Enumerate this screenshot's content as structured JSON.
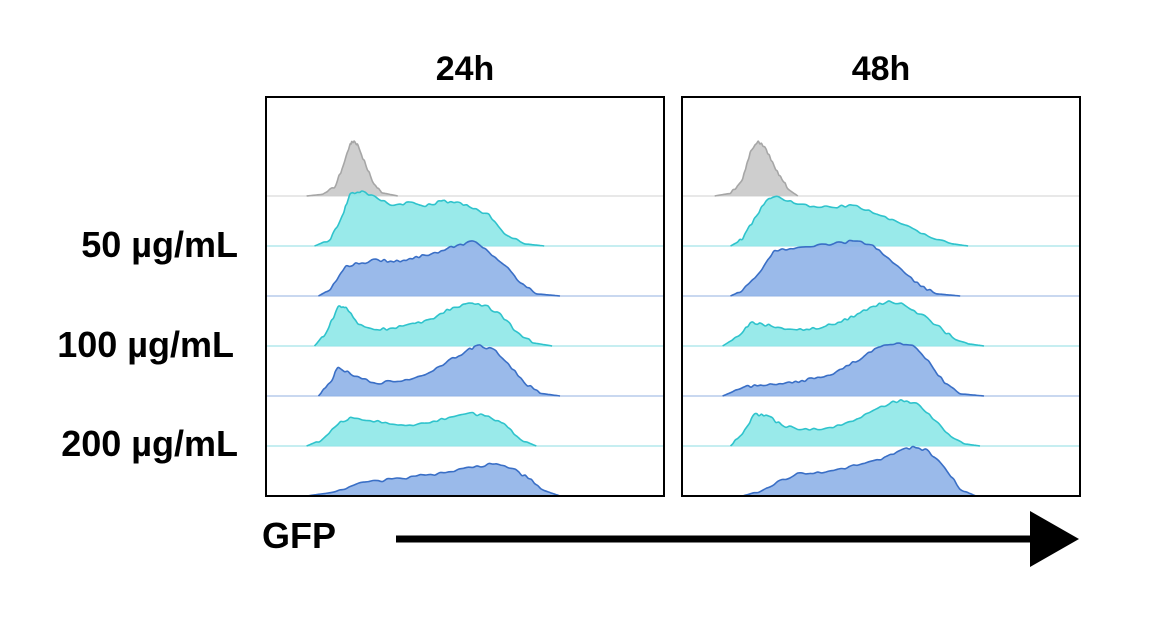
{
  "chart_data": {
    "type": "area",
    "title": "",
    "xlabel": "GFP",
    "ylabel": "",
    "grid": false,
    "panels": [
      {
        "name": "24h"
      },
      {
        "name": "48h"
      }
    ],
    "row_labels": [
      "50 µg/mL",
      "100 µg/mL",
      "200 µg/mL"
    ],
    "colors": {
      "control_fill": "#c9c9c9",
      "control_stroke": "#a6a6a6",
      "cyan_fill": "#8ee8e8",
      "cyan_stroke": "#2fc3cc",
      "blue_fill": "#8fb3e8",
      "blue_stroke": "#3a6fc6"
    },
    "x_domain": [
      0,
      1
    ],
    "histograms": [
      {
        "panel": 0,
        "tracks": [
          {
            "color": "control",
            "points": [
              [
                0.1,
                0
              ],
              [
                0.14,
                0.03
              ],
              [
                0.17,
                0.15
              ],
              [
                0.19,
                0.5
              ],
              [
                0.21,
                0.95
              ],
              [
                0.22,
                1.0
              ],
              [
                0.23,
                0.92
              ],
              [
                0.25,
                0.55
              ],
              [
                0.27,
                0.22
              ],
              [
                0.29,
                0.06
              ],
              [
                0.33,
                0
              ]
            ]
          },
          {
            "color": "cyan",
            "points": [
              [
                0.12,
                0
              ],
              [
                0.16,
                0.12
              ],
              [
                0.19,
                0.55
              ],
              [
                0.21,
                0.95
              ],
              [
                0.24,
                1.0
              ],
              [
                0.28,
                0.86
              ],
              [
                0.32,
                0.74
              ],
              [
                0.36,
                0.8
              ],
              [
                0.4,
                0.72
              ],
              [
                0.44,
                0.82
              ],
              [
                0.48,
                0.8
              ],
              [
                0.52,
                0.68
              ],
              [
                0.56,
                0.58
              ],
              [
                0.6,
                0.22
              ],
              [
                0.65,
                0.04
              ],
              [
                0.7,
                0
              ]
            ]
          },
          {
            "color": "blue",
            "points": [
              [
                0.13,
                0
              ],
              [
                0.16,
                0.12
              ],
              [
                0.2,
                0.55
              ],
              [
                0.24,
                0.6
              ],
              [
                0.28,
                0.66
              ],
              [
                0.32,
                0.62
              ],
              [
                0.36,
                0.68
              ],
              [
                0.4,
                0.74
              ],
              [
                0.44,
                0.82
              ],
              [
                0.48,
                0.92
              ],
              [
                0.52,
                1.0
              ],
              [
                0.56,
                0.8
              ],
              [
                0.6,
                0.56
              ],
              [
                0.64,
                0.24
              ],
              [
                0.68,
                0.04
              ],
              [
                0.74,
                0
              ]
            ]
          },
          {
            "color": "cyan",
            "points": [
              [
                0.12,
                0
              ],
              [
                0.15,
                0.25
              ],
              [
                0.18,
                0.72
              ],
              [
                0.2,
                0.7
              ],
              [
                0.23,
                0.4
              ],
              [
                0.27,
                0.3
              ],
              [
                0.31,
                0.32
              ],
              [
                0.35,
                0.38
              ],
              [
                0.39,
                0.42
              ],
              [
                0.43,
                0.55
              ],
              [
                0.47,
                0.7
              ],
              [
                0.51,
                0.78
              ],
              [
                0.55,
                0.74
              ],
              [
                0.59,
                0.58
              ],
              [
                0.63,
                0.26
              ],
              [
                0.67,
                0.06
              ],
              [
                0.72,
                0
              ]
            ]
          },
          {
            "color": "blue",
            "points": [
              [
                0.13,
                0
              ],
              [
                0.16,
                0.25
              ],
              [
                0.18,
                0.52
              ],
              [
                0.22,
                0.36
              ],
              [
                0.27,
                0.24
              ],
              [
                0.32,
                0.26
              ],
              [
                0.37,
                0.32
              ],
              [
                0.42,
                0.46
              ],
              [
                0.46,
                0.66
              ],
              [
                0.5,
                0.8
              ],
              [
                0.53,
                0.92
              ],
              [
                0.57,
                0.86
              ],
              [
                0.61,
                0.58
              ],
              [
                0.65,
                0.24
              ],
              [
                0.69,
                0.05
              ],
              [
                0.74,
                0
              ]
            ]
          },
          {
            "color": "cyan",
            "points": [
              [
                0.1,
                0
              ],
              [
                0.14,
                0.12
              ],
              [
                0.18,
                0.4
              ],
              [
                0.21,
                0.52
              ],
              [
                0.26,
                0.46
              ],
              [
                0.31,
                0.4
              ],
              [
                0.36,
                0.38
              ],
              [
                0.41,
                0.42
              ],
              [
                0.46,
                0.52
              ],
              [
                0.51,
                0.6
              ],
              [
                0.56,
                0.54
              ],
              [
                0.6,
                0.4
              ],
              [
                0.64,
                0.12
              ],
              [
                0.68,
                0
              ]
            ]
          },
          {
            "color": "blue",
            "points": [
              [
                0.1,
                0
              ],
              [
                0.16,
                0.06
              ],
              [
                0.22,
                0.2
              ],
              [
                0.28,
                0.28
              ],
              [
                0.34,
                0.32
              ],
              [
                0.4,
                0.38
              ],
              [
                0.46,
                0.44
              ],
              [
                0.52,
                0.52
              ],
              [
                0.57,
                0.58
              ],
              [
                0.62,
                0.5
              ],
              [
                0.66,
                0.32
              ],
              [
                0.7,
                0.1
              ],
              [
                0.74,
                0
              ]
            ]
          }
        ]
      },
      {
        "panel": 1,
        "tracks": [
          {
            "color": "control",
            "points": [
              [
                0.08,
                0
              ],
              [
                0.12,
                0.05
              ],
              [
                0.15,
                0.3
              ],
              [
                0.17,
                0.8
              ],
              [
                0.19,
                1.0
              ],
              [
                0.21,
                0.85
              ],
              [
                0.23,
                0.55
              ],
              [
                0.25,
                0.3
              ],
              [
                0.27,
                0.1
              ],
              [
                0.29,
                0
              ]
            ]
          },
          {
            "color": "cyan",
            "points": [
              [
                0.12,
                0
              ],
              [
                0.15,
                0.12
              ],
              [
                0.18,
                0.5
              ],
              [
                0.21,
                0.82
              ],
              [
                0.24,
                0.9
              ],
              [
                0.28,
                0.78
              ],
              [
                0.33,
                0.72
              ],
              [
                0.38,
                0.7
              ],
              [
                0.43,
                0.74
              ],
              [
                0.48,
                0.6
              ],
              [
                0.53,
                0.48
              ],
              [
                0.58,
                0.32
              ],
              [
                0.63,
                0.14
              ],
              [
                0.68,
                0.04
              ],
              [
                0.72,
                0
              ]
            ]
          },
          {
            "color": "blue",
            "points": [
              [
                0.12,
                0
              ],
              [
                0.15,
                0.1
              ],
              [
                0.19,
                0.4
              ],
              [
                0.23,
                0.82
              ],
              [
                0.28,
                0.86
              ],
              [
                0.33,
                0.9
              ],
              [
                0.38,
                0.95
              ],
              [
                0.43,
                1.0
              ],
              [
                0.48,
                0.92
              ],
              [
                0.52,
                0.68
              ],
              [
                0.56,
                0.42
              ],
              [
                0.6,
                0.18
              ],
              [
                0.64,
                0.04
              ],
              [
                0.7,
                0
              ]
            ]
          },
          {
            "color": "cyan",
            "points": [
              [
                0.1,
                0
              ],
              [
                0.14,
                0.18
              ],
              [
                0.17,
                0.42
              ],
              [
                0.2,
                0.4
              ],
              [
                0.24,
                0.34
              ],
              [
                0.28,
                0.3
              ],
              [
                0.32,
                0.3
              ],
              [
                0.36,
                0.36
              ],
              [
                0.4,
                0.44
              ],
              [
                0.44,
                0.58
              ],
              [
                0.48,
                0.72
              ],
              [
                0.52,
                0.82
              ],
              [
                0.56,
                0.74
              ],
              [
                0.6,
                0.58
              ],
              [
                0.64,
                0.38
              ],
              [
                0.68,
                0.16
              ],
              [
                0.72,
                0.04
              ],
              [
                0.76,
                0
              ]
            ]
          },
          {
            "color": "blue",
            "points": [
              [
                0.1,
                0
              ],
              [
                0.14,
                0.12
              ],
              [
                0.18,
                0.2
              ],
              [
                0.22,
                0.22
              ],
              [
                0.26,
                0.24
              ],
              [
                0.3,
                0.28
              ],
              [
                0.34,
                0.34
              ],
              [
                0.38,
                0.4
              ],
              [
                0.42,
                0.56
              ],
              [
                0.46,
                0.74
              ],
              [
                0.5,
                0.9
              ],
              [
                0.54,
                0.96
              ],
              [
                0.58,
                0.92
              ],
              [
                0.62,
                0.64
              ],
              [
                0.66,
                0.24
              ],
              [
                0.7,
                0.04
              ],
              [
                0.76,
                0
              ]
            ]
          },
          {
            "color": "cyan",
            "points": [
              [
                0.12,
                0
              ],
              [
                0.15,
                0.22
              ],
              [
                0.18,
                0.58
              ],
              [
                0.21,
                0.56
              ],
              [
                0.25,
                0.38
              ],
              [
                0.3,
                0.3
              ],
              [
                0.35,
                0.3
              ],
              [
                0.4,
                0.38
              ],
              [
                0.45,
                0.52
              ],
              [
                0.5,
                0.72
              ],
              [
                0.55,
                0.84
              ],
              [
                0.59,
                0.78
              ],
              [
                0.63,
                0.5
              ],
              [
                0.67,
                0.22
              ],
              [
                0.71,
                0.04
              ],
              [
                0.75,
                0
              ]
            ]
          },
          {
            "color": "blue",
            "points": [
              [
                0.15,
                0
              ],
              [
                0.2,
                0.1
              ],
              [
                0.25,
                0.3
              ],
              [
                0.3,
                0.42
              ],
              [
                0.35,
                0.42
              ],
              [
                0.4,
                0.5
              ],
              [
                0.45,
                0.58
              ],
              [
                0.5,
                0.66
              ],
              [
                0.54,
                0.8
              ],
              [
                0.58,
                0.9
              ],
              [
                0.62,
                0.82
              ],
              [
                0.66,
                0.52
              ],
              [
                0.7,
                0.12
              ],
              [
                0.74,
                0
              ]
            ]
          }
        ]
      }
    ]
  }
}
